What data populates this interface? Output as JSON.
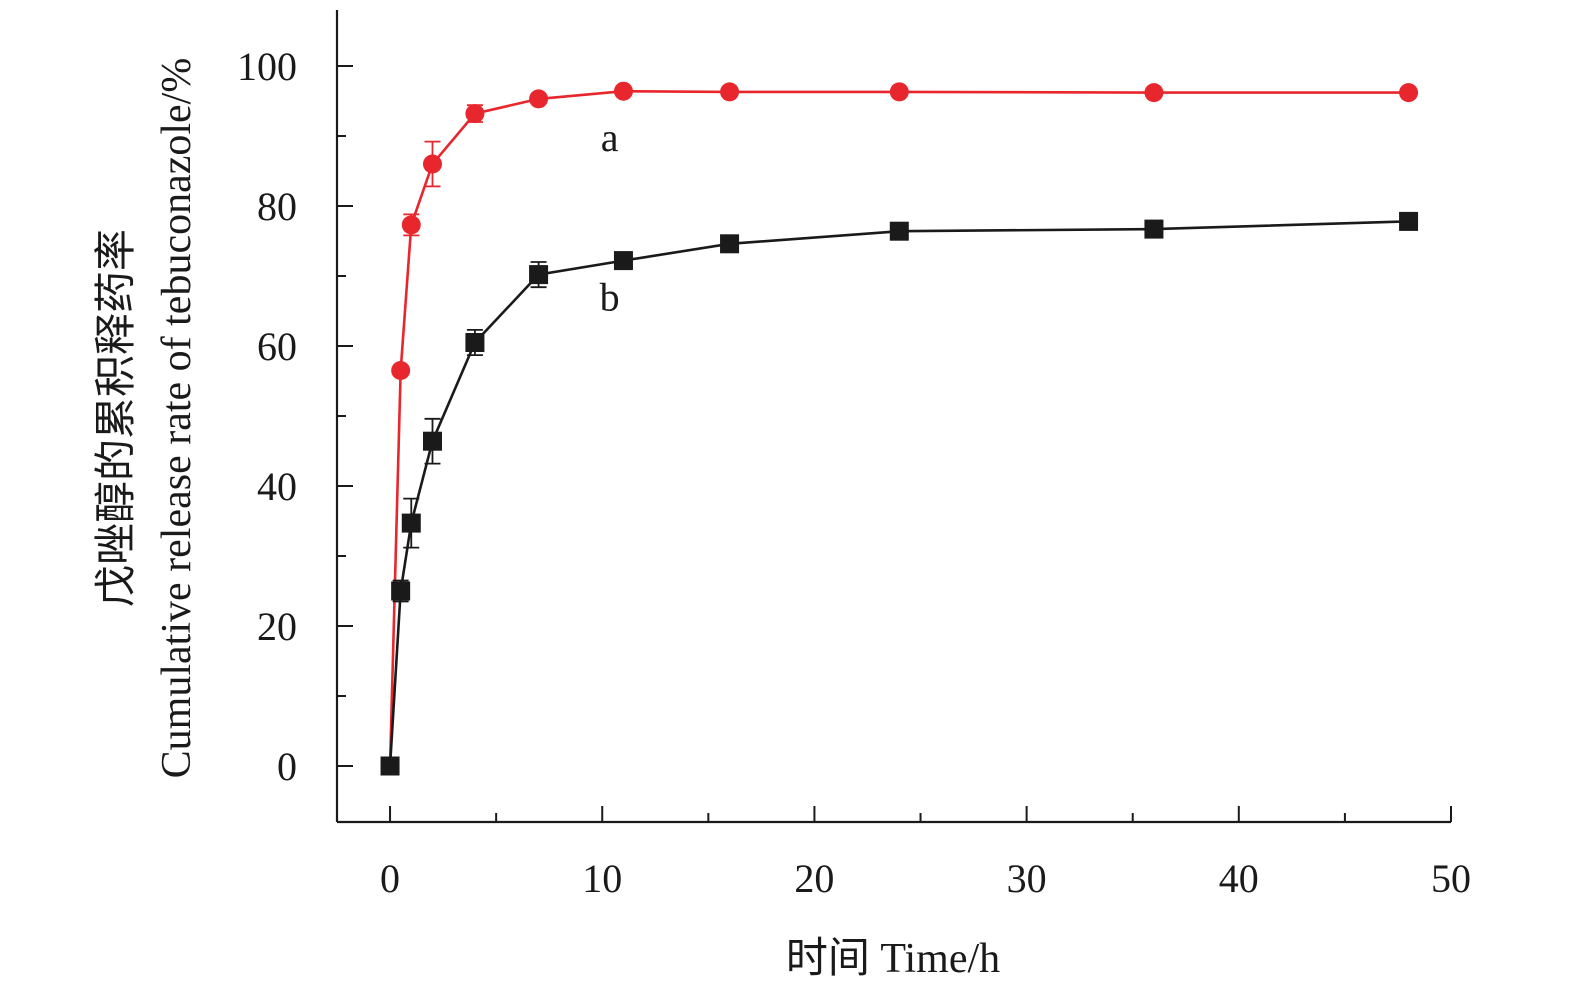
{
  "chart_data": {
    "type": "line",
    "xlabel": "时间 Time/h",
    "ylabel_line1": "戊唑醇的累积释药率",
    "ylabel_line2": "Cumulative release rate of tebuconazole/%",
    "xlim": [
      -2.5,
      50
    ],
    "ylim": [
      -8,
      108
    ],
    "x_ticks": [
      0,
      10,
      20,
      30,
      40,
      50
    ],
    "x_tick_labels": [
      "0",
      "10",
      "20",
      "30",
      "40",
      "50"
    ],
    "y_ticks": [
      0,
      20,
      40,
      60,
      80,
      100
    ],
    "y_tick_labels": [
      "0",
      "20",
      "40",
      "60",
      "80",
      "100"
    ],
    "grid": false,
    "series": [
      {
        "label": "a",
        "color": "#e8262d",
        "marker": "circle",
        "x": [
          0,
          0.5,
          1,
          2,
          4,
          7,
          11,
          16,
          24,
          36,
          48
        ],
        "y": [
          0,
          56.5,
          77.3,
          86.0,
          93.2,
          95.3,
          96.4,
          96.3,
          96.3,
          96.2,
          96.2
        ],
        "err": [
          0,
          0.6,
          1.5,
          3.2,
          1.2,
          0.6,
          0.4,
          0.3,
          0.3,
          0.3,
          0.3
        ]
      },
      {
        "label": "b",
        "color": "#1a1a1a",
        "marker": "square",
        "x": [
          0,
          0.5,
          1,
          2,
          4,
          7,
          11,
          16,
          24,
          36,
          48
        ],
        "y": [
          0,
          25.0,
          34.7,
          46.4,
          60.5,
          70.2,
          72.2,
          74.6,
          76.4,
          76.7,
          77.8
        ],
        "err": [
          0,
          1.5,
          3.5,
          3.2,
          1.8,
          1.8,
          0.8,
          0.9,
          0.8,
          0.8,
          0.8
        ]
      }
    ]
  }
}
